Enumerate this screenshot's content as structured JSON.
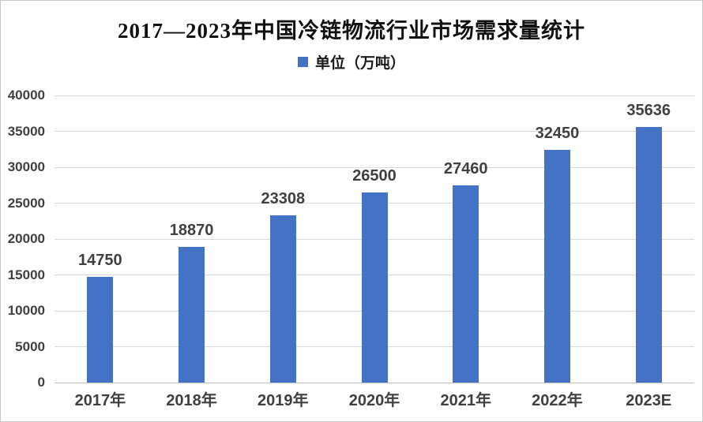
{
  "chart_data": {
    "type": "bar",
    "title": "2017—2023年中国冷链物流行业市场需求量统计",
    "legend": "单位（万吨）",
    "legend_position": "top",
    "categories": [
      "2017年",
      "2018年",
      "2019年",
      "2020年",
      "2021年",
      "2022年",
      "2023E"
    ],
    "values": [
      14750,
      18870,
      23308,
      26500,
      27460,
      32450,
      35636
    ],
    "xlabel": "",
    "ylabel": "",
    "ylim": [
      0,
      40000
    ],
    "ytick_step": 5000,
    "yticks": [
      0,
      5000,
      10000,
      15000,
      20000,
      25000,
      30000,
      35000,
      40000
    ],
    "grid": true,
    "colors": {
      "bar": "#4472C4",
      "data_label": "#404040",
      "axis_label": "#404040",
      "gridline": "#D9D9D9",
      "axis_line": "#BFBFBF",
      "title": "#111111"
    }
  }
}
